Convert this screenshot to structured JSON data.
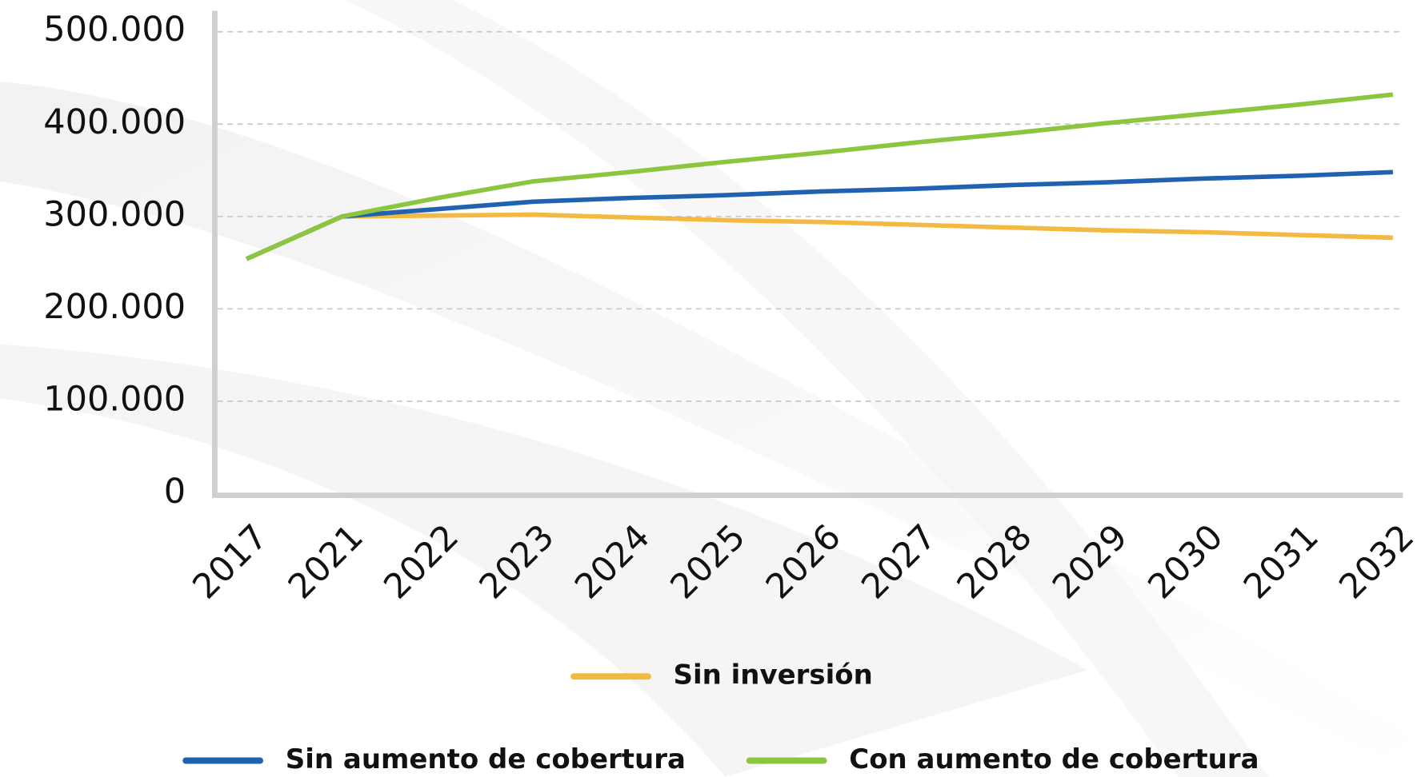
{
  "chart_data": {
    "type": "line",
    "categories": [
      "2017",
      "2021",
      "2022",
      "2023",
      "2024",
      "2025",
      "2026",
      "2027",
      "2028",
      "2029",
      "2030",
      "2031",
      "2032"
    ],
    "series": [
      {
        "name": "Sin inversión",
        "color": "#f4b942",
        "values": [
          254000,
          300000,
          301000,
          302000,
          299000,
          296000,
          294000,
          291000,
          288000,
          285000,
          283000,
          280000,
          277000
        ]
      },
      {
        "name": "Sin aumento de cobertura",
        "color": "#2062b0",
        "values": [
          254000,
          300000,
          308000,
          316000,
          320000,
          323000,
          327000,
          330000,
          334000,
          337000,
          341000,
          344000,
          348000
        ]
      },
      {
        "name": "Con aumento de cobertura",
        "color": "#8cc63f",
        "values": [
          254000,
          300000,
          320000,
          338000,
          348000,
          359000,
          369000,
          380000,
          390000,
          401000,
          411000,
          421000,
          432000
        ]
      }
    ],
    "ylim": [
      0,
      500000
    ],
    "yticks": [
      0,
      {
        "value": 100000,
        "label": "100.000"
      },
      {
        "value": 200000,
        "label": "200.000"
      },
      {
        "value": 300000,
        "label": "300.000"
      },
      {
        "value": 400000,
        "label": "400.000"
      },
      {
        "value": 500000,
        "label": "500.000"
      }
    ],
    "grid": true
  }
}
